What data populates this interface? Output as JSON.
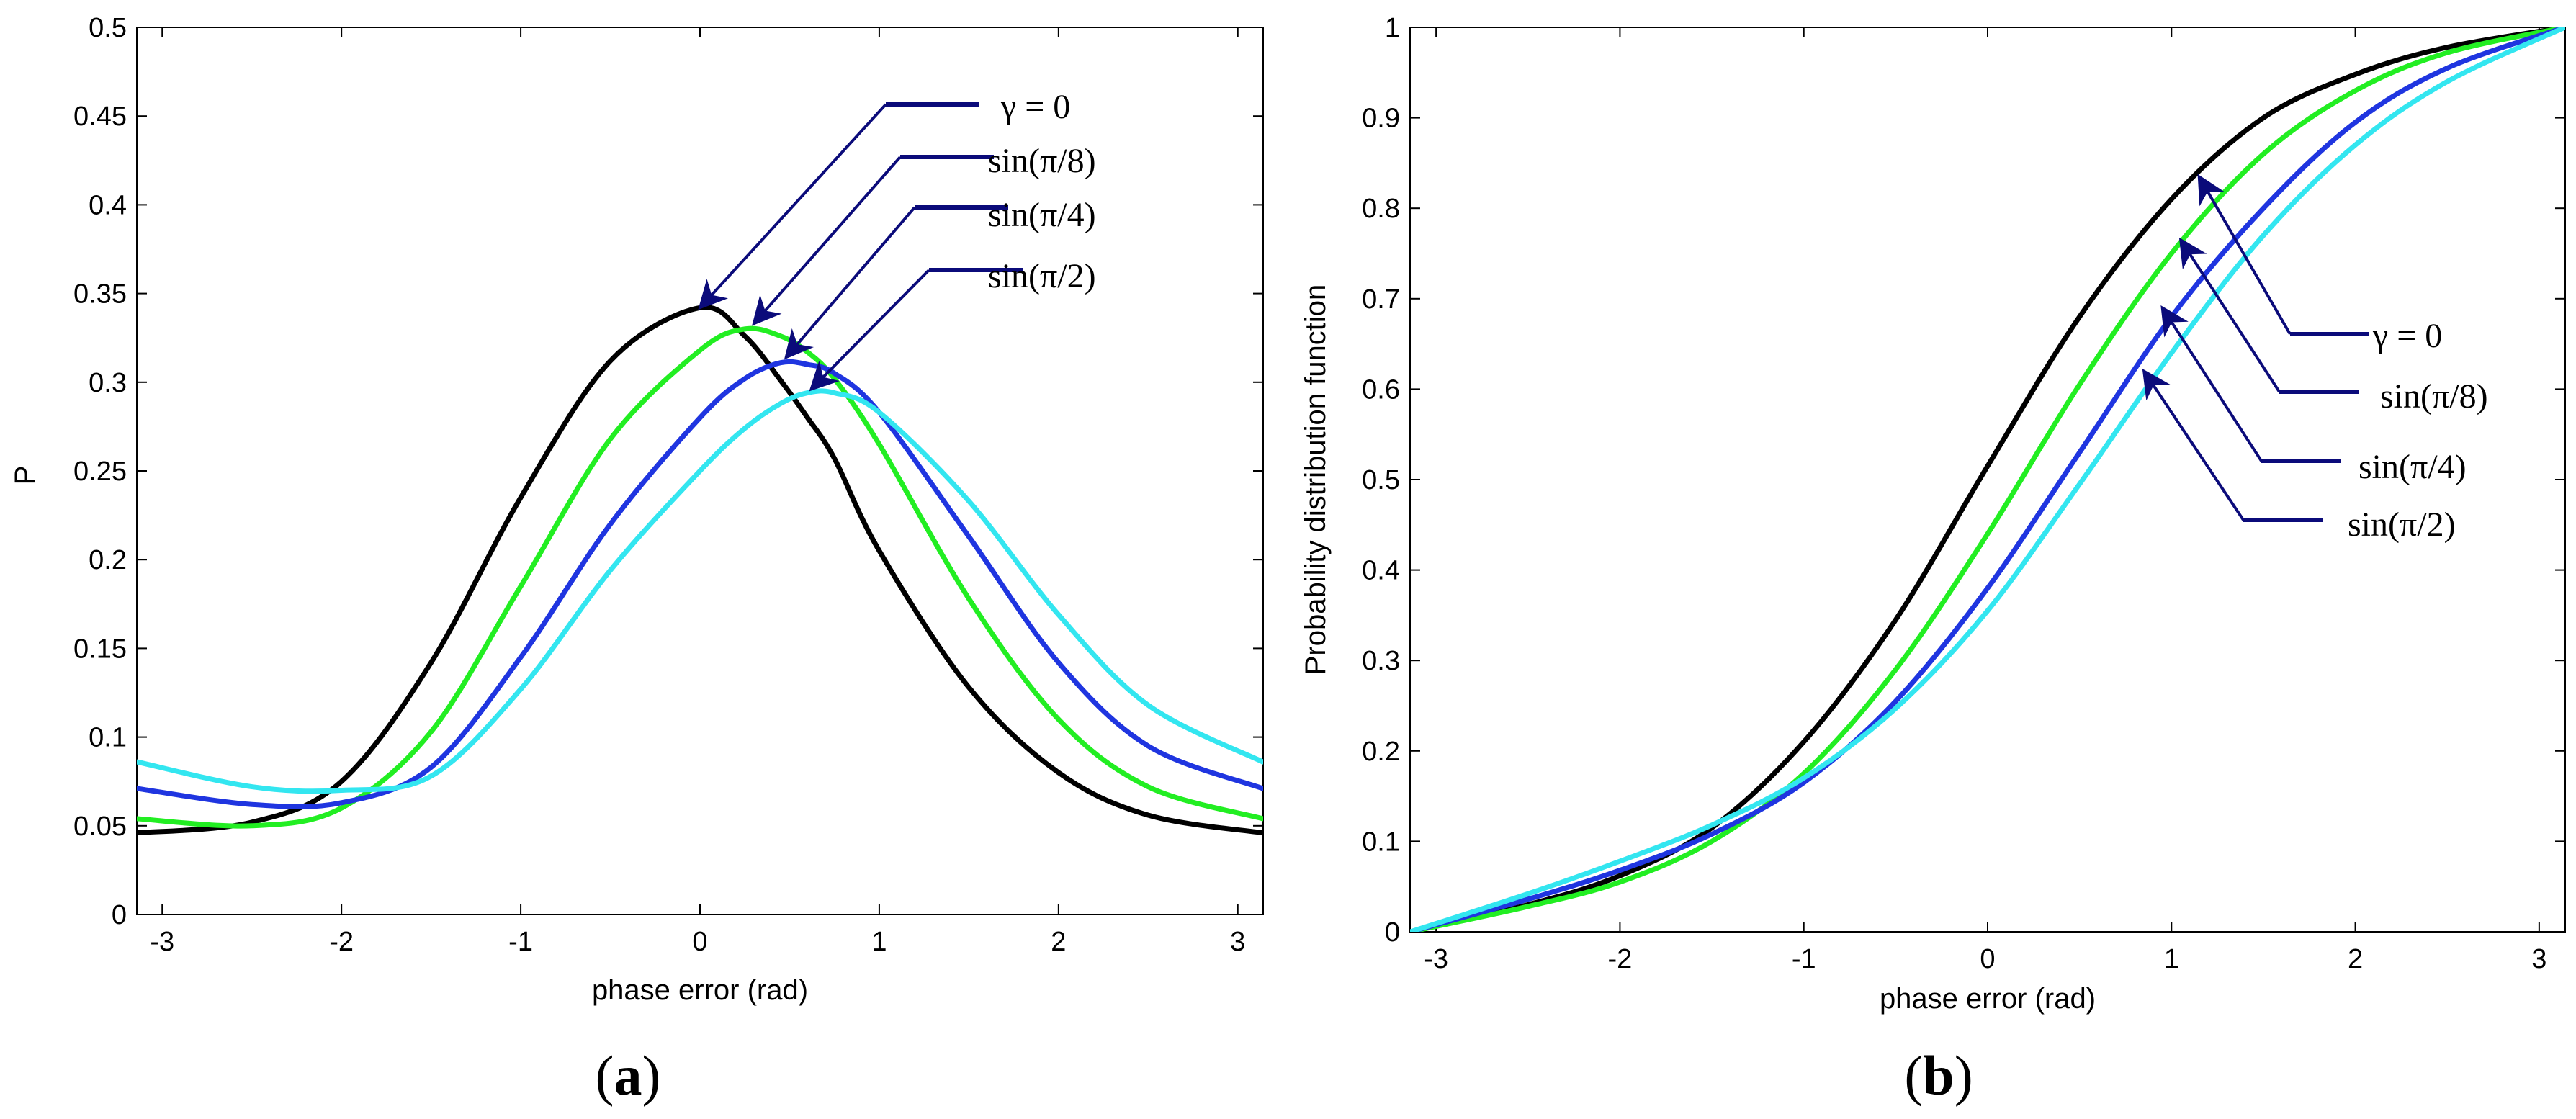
{
  "panels": [
    {
      "id": "a",
      "caption_letter": "a"
    },
    {
      "id": "b",
      "caption_letter": "b"
    }
  ],
  "legend_entries": [
    "γ = 0",
    "sin(π/8)",
    "sin(π/4)",
    "sin(π/2)"
  ],
  "colors": {
    "gamma0": "#000000",
    "sin_pi8": "#22ee22",
    "sin_pi4": "#1f35e0",
    "sin_pi2": "#33e6f0",
    "arrow": "#0b0b7a",
    "axis": "#000000"
  },
  "chart_data": [
    {
      "type": "line",
      "title": "",
      "xlabel": "phase error (rad)",
      "ylabel": "P",
      "xlim": [
        -3.1416,
        3.1416
      ],
      "ylim": [
        0,
        0.5
      ],
      "xticks": [
        -3,
        -2,
        -1,
        0,
        1,
        2,
        3
      ],
      "yticks": [
        0,
        0.05,
        0.1,
        0.15,
        0.2,
        0.25,
        0.3,
        0.35,
        0.4,
        0.45,
        0.5
      ],
      "xtick_labels": [
        "-3",
        "-2",
        "-1",
        "0",
        "1",
        "2",
        "3"
      ],
      "ytick_labels": [
        "0",
        "0.05",
        "0.1",
        "0.15",
        "0.2",
        "0.25",
        "0.3",
        "0.35",
        "0.4",
        "0.45",
        "0.5"
      ],
      "x": [
        -3.14,
        -2.5,
        -2.0,
        -1.5,
        -1.0,
        -0.5,
        0.0,
        0.25,
        0.45,
        0.6,
        0.75,
        1.0,
        1.5,
        2.0,
        2.5,
        3.14
      ],
      "series": [
        {
          "name": "γ = 0",
          "color_key": "gamma0",
          "values": [
            0.046,
            0.052,
            0.075,
            0.142,
            0.235,
            0.312,
            0.342,
            0.326,
            0.301,
            0.28,
            0.257,
            0.205,
            0.128,
            0.08,
            0.056,
            0.046
          ]
        },
        {
          "name": "sin(π/8)",
          "color_key": "sin_pi8",
          "values": [
            0.054,
            0.05,
            0.06,
            0.103,
            0.185,
            0.268,
            0.318,
            0.33,
            0.326,
            0.317,
            0.302,
            0.265,
            0.178,
            0.11,
            0.072,
            0.054
          ]
        },
        {
          "name": "sin(π/4)",
          "color_key": "sin_pi4",
          "values": [
            0.071,
            0.062,
            0.063,
            0.083,
            0.145,
            0.22,
            0.28,
            0.302,
            0.311,
            0.31,
            0.305,
            0.283,
            0.213,
            0.142,
            0.095,
            0.071
          ]
        },
        {
          "name": "sin(π/2)",
          "color_key": "sin_pi2",
          "values": [
            0.086,
            0.072,
            0.07,
            0.078,
            0.127,
            0.194,
            0.25,
            0.274,
            0.288,
            0.294,
            0.294,
            0.283,
            0.233,
            0.169,
            0.118,
            0.086
          ]
        }
      ],
      "annotations": [
        {
          "text": "γ = 0",
          "points_to_x": 0.0,
          "points_to_y": 0.342
        },
        {
          "text": "sin(π/8)",
          "points_to_x": 0.3,
          "points_to_y": 0.333
        },
        {
          "text": "sin(π/4)",
          "points_to_x": 0.48,
          "points_to_y": 0.314
        },
        {
          "text": "sin(π/2)",
          "points_to_x": 0.62,
          "points_to_y": 0.296
        }
      ],
      "grid": false,
      "legend": "annotated arrows, top-right"
    },
    {
      "type": "line",
      "title": "",
      "xlabel": "phase error (rad)",
      "ylabel": "Probability distribution function",
      "xlim": [
        -3.1416,
        3.1416
      ],
      "ylim": [
        0,
        1
      ],
      "xticks": [
        -3,
        -2,
        -1,
        0,
        1,
        2,
        3
      ],
      "yticks": [
        0,
        0.1,
        0.2,
        0.3,
        0.4,
        0.5,
        0.6,
        0.7,
        0.8,
        0.9,
        1
      ],
      "xtick_labels": [
        "-3",
        "-2",
        "-1",
        "0",
        "1",
        "2",
        "3"
      ],
      "ytick_labels": [
        "0",
        "0.1",
        "0.2",
        "0.3",
        "0.4",
        "0.5",
        "0.6",
        "0.7",
        "0.8",
        "0.9",
        "1"
      ],
      "x": [
        -3.14,
        -2.5,
        -2.0,
        -1.5,
        -1.0,
        -0.5,
        0.0,
        0.5,
        1.0,
        1.5,
        2.0,
        2.5,
        3.14
      ],
      "series": [
        {
          "name": "γ = 0",
          "color_key": "gamma0",
          "values": [
            0.0,
            0.03,
            0.062,
            0.115,
            0.21,
            0.345,
            0.515,
            0.68,
            0.81,
            0.9,
            0.948,
            0.978,
            1.0
          ]
        },
        {
          "name": "sin(π/8)",
          "color_key": "sin_pi8",
          "values": [
            0.0,
            0.028,
            0.055,
            0.1,
            0.175,
            0.29,
            0.44,
            0.605,
            0.75,
            0.86,
            0.93,
            0.972,
            1.0
          ]
        },
        {
          "name": "sin(π/4)",
          "color_key": "sin_pi4",
          "values": [
            0.0,
            0.036,
            0.068,
            0.108,
            0.165,
            0.255,
            0.38,
            0.53,
            0.68,
            0.8,
            0.895,
            0.955,
            1.0
          ]
        },
        {
          "name": "sin(π/2)",
          "color_key": "sin_pi2",
          "values": [
            0.0,
            0.042,
            0.078,
            0.118,
            0.17,
            0.247,
            0.355,
            0.495,
            0.64,
            0.77,
            0.87,
            0.94,
            1.0
          ]
        }
      ],
      "annotations": [
        {
          "text": "γ = 0",
          "points_to_x": 1.15,
          "points_to_y": 0.835
        },
        {
          "text": "sin(π/8)",
          "points_to_x": 1.05,
          "points_to_y": 0.765
        },
        {
          "text": "sin(π/4)",
          "points_to_x": 0.95,
          "points_to_y": 0.69
        },
        {
          "text": "sin(π/2)",
          "points_to_x": 0.85,
          "points_to_y": 0.62
        }
      ],
      "grid": false,
      "legend": "annotated arrows, center-right"
    }
  ]
}
